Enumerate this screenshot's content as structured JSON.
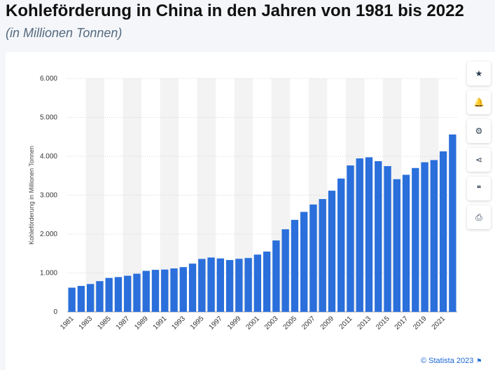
{
  "title": "Kohleförderung in China in den Jahren von 1981 bis 2022",
  "subtitle": "(in Millionen Tonnen)",
  "copyright": "© Statista 2023",
  "sidebar": [
    {
      "name": "favorite-button",
      "icon": "star-icon",
      "glyph": "★"
    },
    {
      "name": "notification-button",
      "icon": "bell-icon",
      "glyph": "🔔"
    },
    {
      "name": "settings-button",
      "icon": "gear-icon",
      "glyph": "⚙"
    },
    {
      "name": "share-button",
      "icon": "share-icon",
      "glyph": "⋖"
    },
    {
      "name": "cite-button",
      "icon": "quote-icon",
      "glyph": "❝"
    },
    {
      "name": "print-button",
      "icon": "printer-icon",
      "glyph": "⎙"
    }
  ],
  "colors": {
    "bar": "#2a6fdb",
    "band": "#f3f3f3",
    "grid": "#d4d4d4",
    "accent": "#1a66d6"
  },
  "chart_data": {
    "type": "bar",
    "ylabel": "Kohleförderung in Millionen Tonnen",
    "ylim": [
      0,
      6000
    ],
    "yticks": [
      "0",
      "1.000",
      "2.000",
      "3.000",
      "4.000",
      "5.000",
      "6.000"
    ],
    "ytick_values": [
      0,
      1000,
      2000,
      3000,
      4000,
      5000,
      6000
    ],
    "grid": true,
    "categories": [
      "1981",
      "1982",
      "1983",
      "1984",
      "1985",
      "1986",
      "1987",
      "1988",
      "1989",
      "1990",
      "1991",
      "1992",
      "1993",
      "1994",
      "1995",
      "1996",
      "1997",
      "1998",
      "1999",
      "2000",
      "2001",
      "2002",
      "2003",
      "2004",
      "2005",
      "2006",
      "2007",
      "2008",
      "2009",
      "2010",
      "2011",
      "2012",
      "2013",
      "2014",
      "2015",
      "2016",
      "2017",
      "2018",
      "2019",
      "2020",
      "2021",
      "2022"
    ],
    "xtick_labels": [
      "1981",
      "1983",
      "1985",
      "1987",
      "1989",
      "1991",
      "1993",
      "1995",
      "1997",
      "1999",
      "2001",
      "2003",
      "2005",
      "2007",
      "2009",
      "2011",
      "2013",
      "2015",
      "2017",
      "2019",
      "2021"
    ],
    "values": [
      622,
      666,
      715,
      789,
      872,
      894,
      928,
      980,
      1054,
      1080,
      1087,
      1116,
      1150,
      1240,
      1361,
      1397,
      1373,
      1332,
      1364,
      1384,
      1472,
      1550,
      1835,
      2123,
      2365,
      2570,
      2760,
      2900,
      3115,
      3428,
      3764,
      3945,
      3974,
      3874,
      3747,
      3411,
      3524,
      3698,
      3846,
      3902,
      4126,
      4560
    ]
  }
}
